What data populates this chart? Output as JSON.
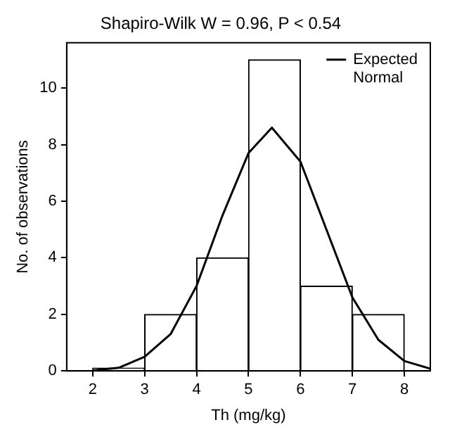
{
  "chart_data": {
    "type": "histogram",
    "title": "Shapiro-Wilk W = 0.96, P < 0.54",
    "xlabel": "Th (mg/kg)",
    "ylabel": "No. of observations",
    "bins": [
      2,
      3,
      4,
      5,
      6,
      7,
      8
    ],
    "values": [
      0.1,
      2,
      4,
      11,
      3,
      2
    ],
    "color": "#ffffff",
    "series": [
      {
        "type": "line",
        "name": "Expected Normal",
        "color": "#000000",
        "x": [
          2,
          2.5,
          3,
          3.5,
          4,
          4.5,
          5,
          5.45,
          6,
          6.5,
          7,
          7.5,
          8,
          8.5
        ],
        "values": [
          0.02,
          0.11,
          0.5,
          1.3,
          3.0,
          5.5,
          7.7,
          8.6,
          7.4,
          5.0,
          2.6,
          1.1,
          0.35,
          0.08
        ]
      }
    ],
    "xlim": [
      1.5,
      8.5
    ],
    "xticks": [
      2,
      3,
      4,
      5,
      6,
      7,
      8
    ],
    "ylim": [
      0,
      11.6
    ],
    "yticks": [
      0,
      2,
      4,
      6,
      8,
      10
    ],
    "grid": false,
    "legend": "top right",
    "marker": "none",
    "line_style": "solid"
  }
}
